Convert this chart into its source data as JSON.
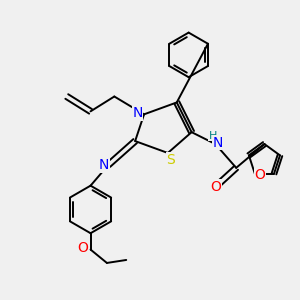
{
  "bg_color": "#f0f0f0",
  "bond_color": "#000000",
  "N_color": "#0000ff",
  "S_color": "#cccc00",
  "O_color": "#ff0000",
  "H_color": "#008080",
  "label_fontsize": 10,
  "small_fontsize": 8,
  "figsize": [
    3.0,
    3.0
  ],
  "dpi": 100,
  "xlim": [
    0,
    10
  ],
  "ylim": [
    0,
    10
  ]
}
